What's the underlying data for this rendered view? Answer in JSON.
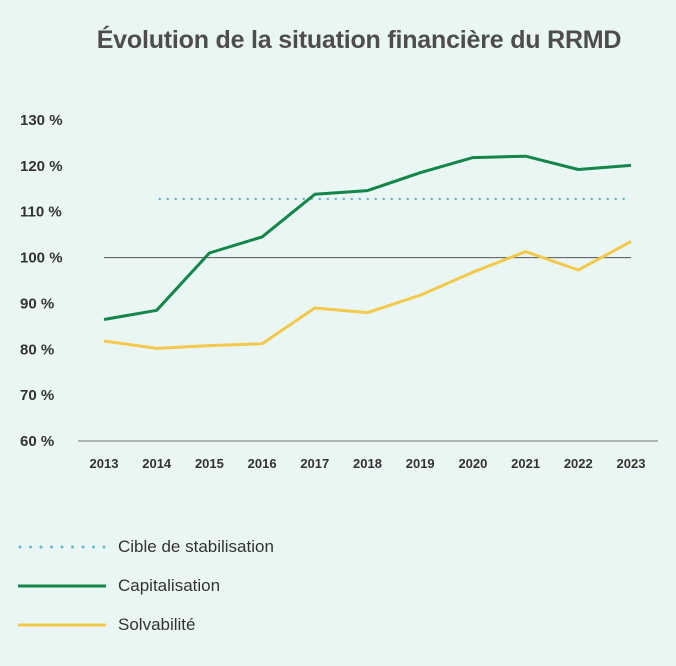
{
  "title": "Évolution de la situation financière du RRMD",
  "chart_data": {
    "type": "line",
    "title": "Évolution de la situation financière du RRMD",
    "x": [
      "2013",
      "2014",
      "2015",
      "2016",
      "2017",
      "2018",
      "2019",
      "2020",
      "2021",
      "2022",
      "2023"
    ],
    "y_ticks": [
      "130 %",
      "120 %",
      "110 %",
      "100 %",
      "90 %",
      "80 %",
      "70 %",
      "60 %"
    ],
    "ylim": [
      60,
      130
    ],
    "reference_line": 100,
    "grid": false,
    "legend_position": "bottom-left",
    "series": [
      {
        "name": "Capitalisation",
        "color": "#13864a",
        "style": "solid",
        "values": [
          86.5,
          88.5,
          101,
          104.5,
          113.8,
          114.6,
          118.5,
          121.8,
          122.1,
          119.2,
          120.1
        ]
      },
      {
        "name": "Solvabilité",
        "color": "#f3c94b",
        "style": "solid",
        "values": [
          81.8,
          80.2,
          80.8,
          81.2,
          89,
          88,
          91.8,
          96.8,
          101.3,
          97.3,
          103.5
        ]
      },
      {
        "name": "Cible de stabilisation",
        "color": "#6cb9c9",
        "style": "dotted",
        "values": [
          null,
          112.8,
          112.8,
          112.8,
          112.8,
          112.8,
          112.8,
          112.8,
          112.8,
          112.8,
          112.8
        ]
      }
    ],
    "legend": [
      {
        "label": "Cible de stabilisation",
        "color": "#6cb9c9",
        "style": "dotted"
      },
      {
        "label": "Capitalisation",
        "color": "#13864a",
        "style": "solid"
      },
      {
        "label": "Solvabilité",
        "color": "#f3c94b",
        "style": "solid"
      }
    ]
  }
}
